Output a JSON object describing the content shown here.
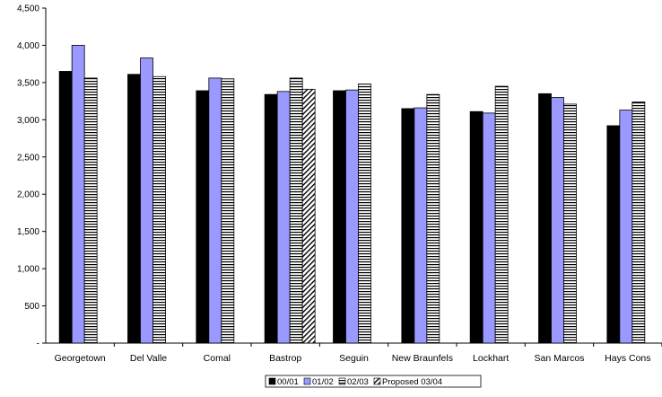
{
  "chart_data": {
    "type": "bar",
    "title": "",
    "xlabel": "",
    "ylabel": "",
    "ylim": [
      0,
      4500
    ],
    "yticks": [
      0,
      500,
      1000,
      1500,
      2000,
      2500,
      3000,
      3500,
      4000,
      4500
    ],
    "ytick_labels": [
      "-",
      "500",
      "1,000",
      "1,500",
      "2,000",
      "2,500",
      "3,000",
      "3,500",
      "4,000",
      "4,500"
    ],
    "grid": false,
    "legend_position": "bottom-center",
    "categories": [
      "Georgetown",
      "Del Valle",
      "Comal",
      "Bastrop",
      "Seguin",
      "New Braunfels",
      "Lockhart",
      "San Marcos",
      "Hays Cons"
    ],
    "series": [
      {
        "name": "00/01",
        "color": "#000000",
        "fill": "solid",
        "values": [
          3650,
          3610,
          3390,
          3340,
          3390,
          3150,
          3110,
          3350,
          2920
        ]
      },
      {
        "name": "01/02",
        "color": "#9999ff",
        "fill": "solid",
        "values": [
          4000,
          3830,
          3560,
          3380,
          3400,
          3160,
          3090,
          3300,
          3130
        ]
      },
      {
        "name": "02/03",
        "color": "#ffffff",
        "fill": "horizontal-stripes",
        "values": [
          3560,
          3580,
          3550,
          3560,
          3480,
          3340,
          3450,
          3210,
          3240
        ]
      },
      {
        "name": "Proposed 03/04",
        "color": "#000080",
        "fill": "diagonal-stripes",
        "values": [
          null,
          null,
          null,
          3410,
          null,
          null,
          null,
          null,
          null
        ]
      }
    ]
  }
}
